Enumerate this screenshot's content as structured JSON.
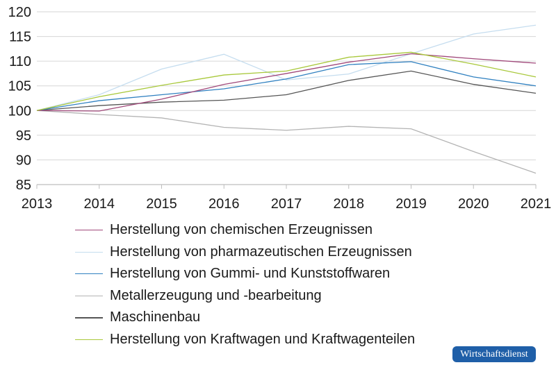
{
  "chart_data": {
    "type": "line",
    "x": [
      2013,
      2014,
      2015,
      2016,
      2017,
      2018,
      2019,
      2020,
      2021
    ],
    "ylim": [
      85,
      120
    ],
    "yticks": [
      85,
      90,
      95,
      100,
      105,
      110,
      115,
      120
    ],
    "grid": true,
    "legend_position": "bottom",
    "series": [
      {
        "name": "Herstellung von chemischen Erzeugnissen",
        "color": "#a0487a",
        "values": [
          100,
          99.9,
          102.3,
          105.3,
          107.5,
          109.8,
          111.5,
          110.5,
          109.6
        ]
      },
      {
        "name": "Herstellung von pharmazeutischen Erzeugnissen",
        "color": "#c5ddef",
        "values": [
          100,
          103.2,
          108.4,
          111.4,
          106.2,
          107.4,
          111.5,
          115.5,
          117.3
        ]
      },
      {
        "name": "Herstellung von Gummi- und Kunststoffwaren",
        "color": "#2f80c0",
        "values": [
          100,
          102.0,
          103.2,
          104.4,
          106.4,
          109.3,
          109.9,
          106.8,
          105.0
        ]
      },
      {
        "name": "Metallerzeugung und -bearbeitung",
        "color": "#b3b3b3",
        "values": [
          100,
          99.2,
          98.5,
          96.6,
          96.0,
          96.8,
          96.3,
          91.7,
          87.3
        ]
      },
      {
        "name": "Maschinenbau",
        "color": "#555555",
        "values": [
          100,
          101.0,
          101.7,
          102.1,
          103.2,
          106.1,
          108.0,
          105.3,
          103.5
        ]
      },
      {
        "name": "Herstellung von Kraftwagen und Kraftwagenteilen",
        "color": "#a8c83a",
        "values": [
          100,
          102.8,
          105.1,
          107.2,
          108.0,
          110.8,
          111.8,
          109.4,
          106.8
        ]
      }
    ]
  },
  "badge": "Wirtschaftsdienst"
}
